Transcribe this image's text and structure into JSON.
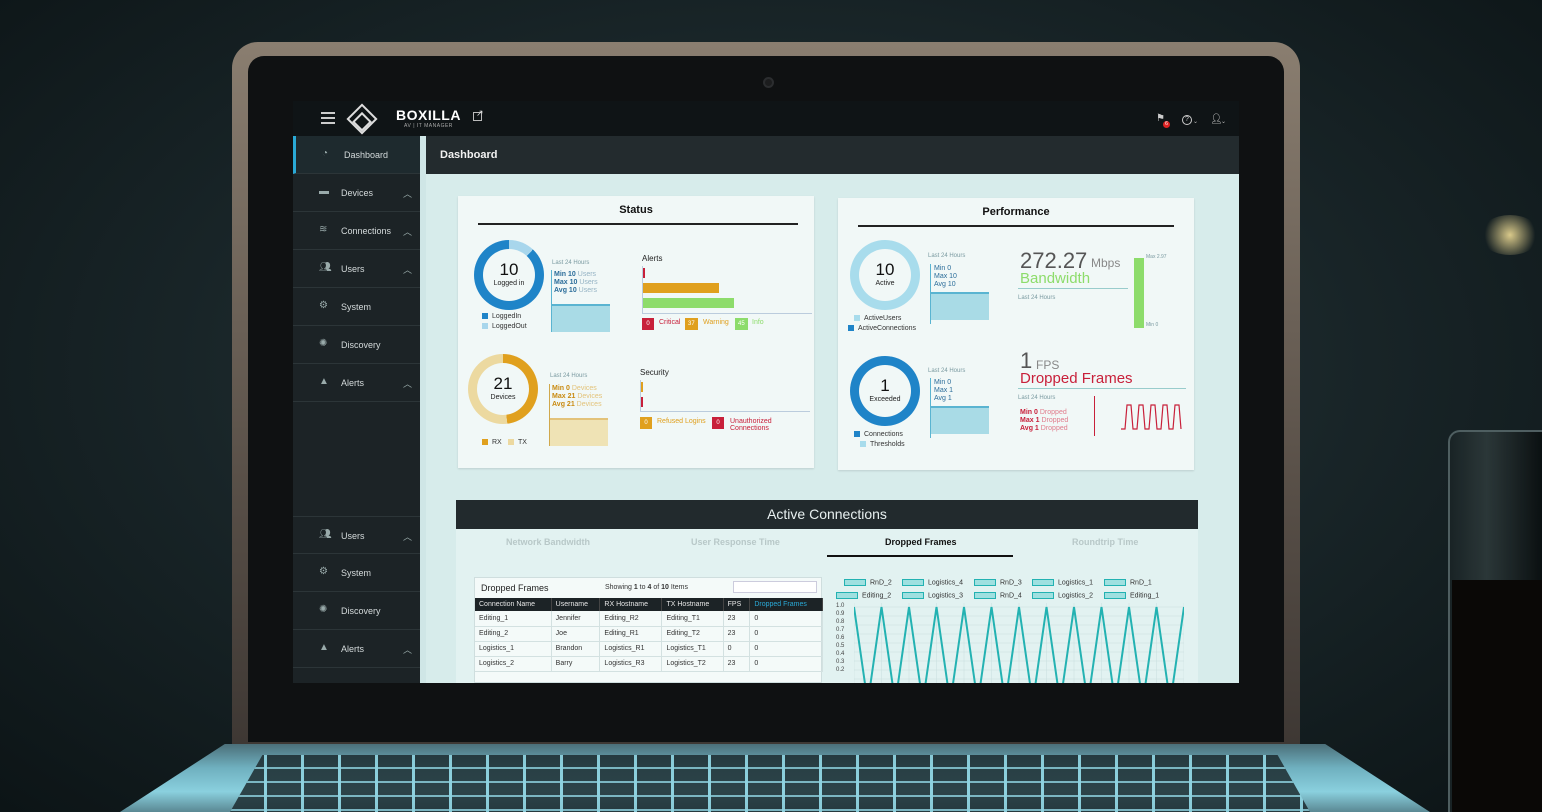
{
  "app": {
    "brand": "BOXILLA",
    "brand_sub": "AV | IT MANAGER",
    "flag_count": "6"
  },
  "sidebar": {
    "items": [
      {
        "label": "Dashboard",
        "icon": "dashboard-icon"
      },
      {
        "label": "Devices",
        "icon": "devices-icon"
      },
      {
        "label": "Connections",
        "icon": "wifi-icon"
      },
      {
        "label": "Users",
        "icon": "users-icon"
      },
      {
        "label": "System",
        "icon": "gear-icon"
      },
      {
        "label": "Discovery",
        "icon": "discovery-icon"
      },
      {
        "label": "Alerts",
        "icon": "warning-icon"
      }
    ],
    "bottom_items": [
      {
        "label": "Users",
        "icon": "users-icon"
      },
      {
        "label": "System",
        "icon": "gear-icon"
      },
      {
        "label": "Discovery",
        "icon": "discovery-icon"
      },
      {
        "label": "Alerts",
        "icon": "warning-icon"
      }
    ]
  },
  "header": {
    "title": "Dashboard"
  },
  "status": {
    "title": "Status",
    "logged_in": {
      "value": "10",
      "label": "Logged in",
      "period": "Last 24 Hours",
      "min_label": "Min",
      "min_value": "10",
      "max_label": "Max",
      "max_value": "10",
      "avg_label": "Avg",
      "avg_value": "10",
      "unit": "Users",
      "legend": [
        "LoggedIn",
        "LoggedOut"
      ]
    },
    "alerts": {
      "title": "Alerts",
      "critical": {
        "count": "0",
        "label": "Critical"
      },
      "warning": {
        "count": "37",
        "label": "Warning"
      },
      "info": {
        "count": "45",
        "label": "Info"
      }
    },
    "devices": {
      "value": "21",
      "label": "Devices",
      "period": "Last 24 Hours",
      "min_label": "Min",
      "min_value": "0",
      "max_label": "Max",
      "max_value": "21",
      "avg_label": "Avg",
      "avg_value": "21",
      "unit": "Devices",
      "legend": [
        "RX",
        "TX"
      ]
    },
    "security": {
      "title": "Security",
      "refused": {
        "count": "0",
        "label": "Refused Logins"
      },
      "unauthorized": {
        "count": "0",
        "label": "Unauthorized Connections"
      }
    }
  },
  "performance": {
    "title": "Performance",
    "active": {
      "value": "10",
      "label": "Active",
      "period": "Last 24 Hours",
      "min": "Min 0",
      "max": "Max 10",
      "avg": "Avg 10",
      "legend": [
        "ActiveUsers",
        "ActiveConnections"
      ]
    },
    "bandwidth": {
      "value": "272.27",
      "unit": "Mbps",
      "label": "Bandwidth",
      "period": "Last 24 Hours",
      "scale_max": "Max 2.97",
      "scale_min": "Min 0"
    },
    "exceeded": {
      "value": "1",
      "label": "Exceeded",
      "period": "Last 24 Hours",
      "min": "Min 0",
      "max": "Max 1",
      "avg": "Avg 1",
      "legend": [
        "Connections",
        "Thresholds"
      ]
    },
    "dropped": {
      "value": "1",
      "unit": "FPS",
      "label": "Dropped Frames",
      "period": "Last 24 Hours",
      "min_label": "Min",
      "min_value": "0",
      "max_label": "Max",
      "max_value": "1",
      "avg_label": "Avg",
      "avg_value": "1",
      "unit_word": "Dropped"
    }
  },
  "active_connections": {
    "title": "Active Connections",
    "tabs": [
      "Network Bandwidth",
      "User Response Time",
      "Dropped Frames",
      "Roundtrip Time"
    ],
    "active_tab": 2,
    "table": {
      "title": "Dropped Frames",
      "info_prefix": "Showing",
      "info_from": "1",
      "info_to_word": "to",
      "info_to": "4",
      "info_of_word": "of",
      "info_total": "10",
      "info_suffix": "Items",
      "columns": [
        "Connection Name",
        "Username",
        "RX Hostname",
        "TX Hostname",
        "FPS",
        "Dropped Frames"
      ],
      "rows": [
        [
          "Editing_1",
          "Jennifer",
          "Editing_R2",
          "Editing_T1",
          "23",
          "0"
        ],
        [
          "Editing_2",
          "Joe",
          "Editing_R1",
          "Editing_T2",
          "23",
          "0"
        ],
        [
          "Logistics_1",
          "Brandon",
          "Logistics_R1",
          "Logistics_T1",
          "0",
          "0"
        ],
        [
          "Logistics_2",
          "Barry",
          "Logistics_R3",
          "Logistics_T2",
          "23",
          "0"
        ]
      ]
    },
    "chart_legend": [
      "RnD_2",
      "Logistics_4",
      "RnD_3",
      "Logistics_1",
      "RnD_1",
      "Editing_2",
      "Logistics_3",
      "RnD_4",
      "Logistics_2",
      "Editing_1"
    ],
    "y_ticks": [
      "1.0",
      "0.9",
      "0.8",
      "0.7",
      "0.6",
      "0.5",
      "0.4",
      "0.3",
      "0.2"
    ]
  },
  "chart_data": {
    "type": "line",
    "title": "Dropped Frames",
    "ylim": [
      0.2,
      1.0
    ],
    "y_ticks": [
      1.0,
      0.9,
      0.8,
      0.7,
      0.6,
      0.5,
      0.4,
      0.3,
      0.2
    ],
    "series": [
      {
        "name": "RnD_2",
        "values": [
          1,
          0,
          1,
          0,
          1,
          0,
          1,
          0,
          1,
          0,
          1,
          0,
          1,
          0,
          1,
          0,
          1,
          0,
          1,
          0,
          1,
          0,
          1,
          0,
          1
        ]
      }
    ]
  },
  "colors": {
    "accent": "#2aa9d6",
    "critical": "#c8203a",
    "warning": "#e0a01e",
    "info": "#8ddc6b",
    "teal": "#23b2b2"
  }
}
